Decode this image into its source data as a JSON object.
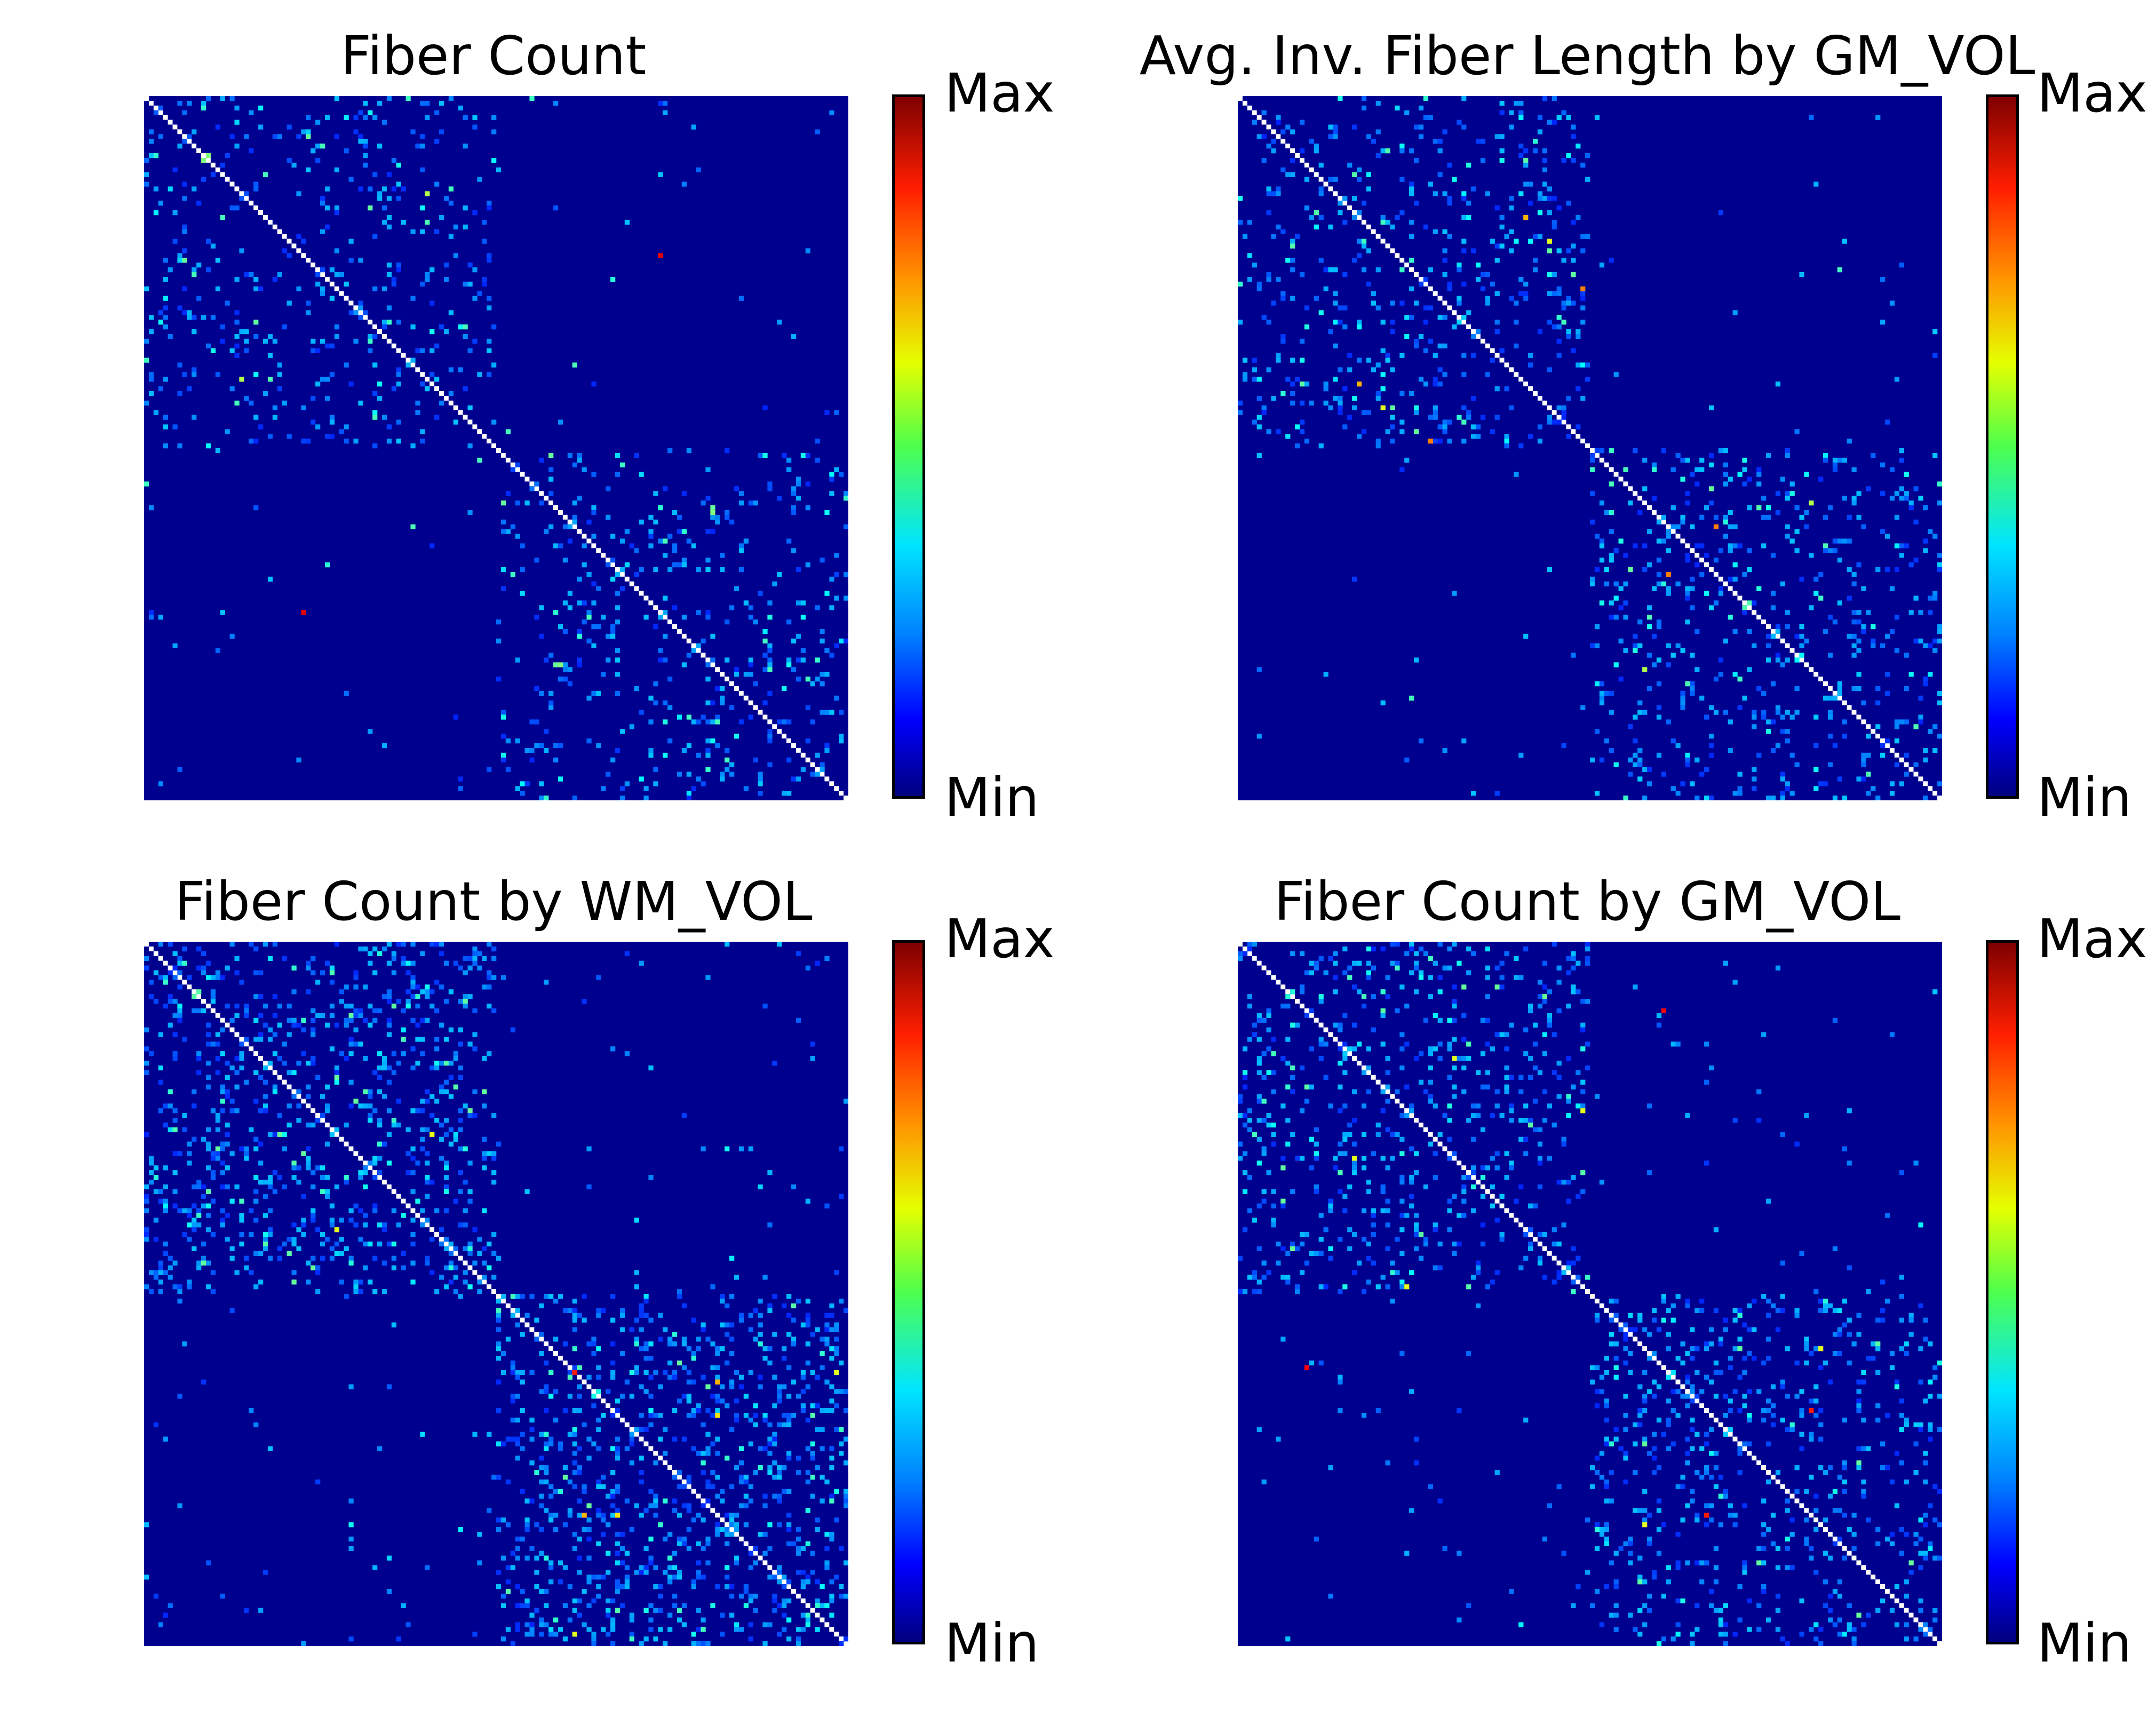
{
  "colors": {
    "background": "#00008f",
    "diagonal": "#ffffff",
    "colormap": [
      "#00007f",
      "#0000ff",
      "#0080ff",
      "#00e5ff",
      "#4dff4d",
      "#e5ff00",
      "#ff9400",
      "#ff1e00",
      "#7f0000"
    ]
  },
  "chart_data": [
    {
      "type": "heatmap",
      "title": "Fiber Count",
      "matrix_size": 148,
      "colorbar": {
        "max_label": "Max",
        "min_label": "Min"
      },
      "block_structure": "two hemispheric blocks (rows/cols 0-73 and 74-147)",
      "density": 0.08,
      "notable_cells": [
        [
          20,
          59,
          0.55
        ],
        [
          56,
          90,
          0.45
        ],
        [
          13,
          12,
          0.5
        ],
        [
          33,
          108,
          0.9
        ],
        [
          87,
          119,
          0.5
        ]
      ]
    },
    {
      "type": "heatmap",
      "title": "Avg. Inv. Fiber Length by GM_VOL",
      "matrix_size": 148,
      "colorbar": {
        "max_label": "Max",
        "min_label": "Min"
      },
      "block_structure": "two hemispheric blocks (rows/cols 0-73 and 74-147)",
      "density": 0.1,
      "notable_cells": [
        [
          40,
          72,
          0.75
        ],
        [
          30,
          65,
          0.6
        ],
        [
          85,
          120,
          0.55
        ],
        [
          90,
          100,
          0.75
        ],
        [
          60,
          25,
          0.7
        ]
      ]
    },
    {
      "type": "heatmap",
      "title": "Fiber Count by WM_VOL",
      "matrix_size": 148,
      "colorbar": {
        "max_label": "Max",
        "min_label": "Min"
      },
      "block_structure": "two hemispheric blocks (rows/cols 0-73 and 74-147)",
      "density": 0.16,
      "notable_cells": [
        [
          90,
          90,
          0.85
        ],
        [
          92,
          120,
          0.7
        ],
        [
          99,
          120,
          0.65
        ],
        [
          40,
          60,
          0.6
        ],
        [
          145,
          90,
          0.6
        ]
      ]
    },
    {
      "type": "heatmap",
      "title": "Fiber Count by GM_VOL",
      "matrix_size": 148,
      "colorbar": {
        "max_label": "Max",
        "min_label": "Min"
      },
      "block_structure": "two hemispheric blocks (rows/cols 0-73 and 74-147)",
      "density": 0.11,
      "notable_cells": [
        [
          89,
          14,
          0.88
        ],
        [
          98,
          120,
          0.85
        ],
        [
          85,
          122,
          0.6
        ],
        [
          24,
          45,
          0.6
        ],
        [
          35,
          72,
          0.6
        ]
      ]
    }
  ]
}
